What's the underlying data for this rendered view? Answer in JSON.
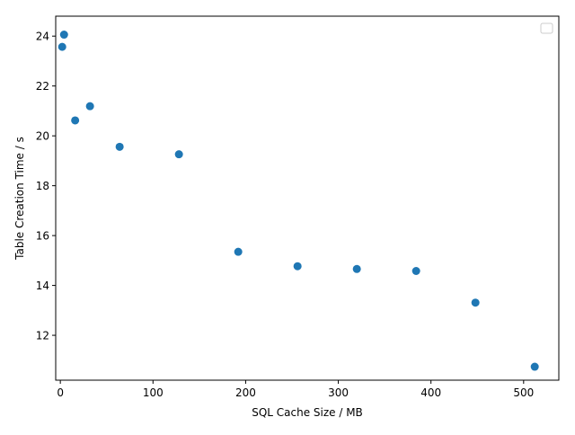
{
  "chart_data": {
    "type": "scatter",
    "title": "",
    "xlabel": "SQL Cache Size / MB",
    "ylabel": "Table Creation Time / s",
    "xlim": [
      -5,
      538
    ],
    "ylim": [
      10.2,
      24.8
    ],
    "xticks": [
      0,
      100,
      200,
      300,
      400,
      500
    ],
    "yticks": [
      12,
      14,
      16,
      18,
      20,
      22,
      24
    ],
    "grid": false,
    "legend": {
      "placement": "top-right",
      "entries": []
    },
    "marker_color": "#1f77b4",
    "series": [
      {
        "x": [
          2,
          4,
          16,
          32,
          64,
          128,
          192,
          256,
          320,
          384,
          448,
          512
        ],
        "y": [
          23.57,
          24.06,
          20.62,
          21.19,
          19.56,
          19.26,
          15.35,
          14.77,
          14.66,
          14.58,
          13.31,
          10.74
        ]
      }
    ]
  }
}
